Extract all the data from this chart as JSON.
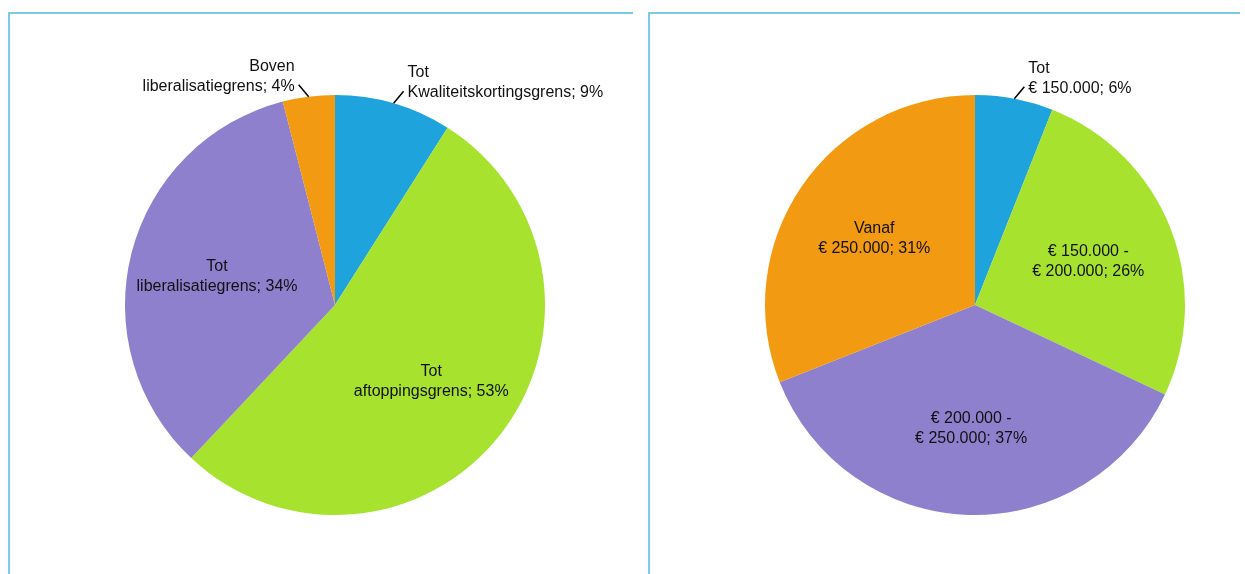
{
  "chart_data": [
    {
      "type": "pie",
      "categories": [
        "Tot Kwaliteitskortingsgrens",
        "Tot aftoppingsgrens",
        "Tot liberalisatiegrens",
        "Boven liberalisatiegrens"
      ],
      "values": [
        9,
        53,
        34,
        4
      ],
      "value_labels": [
        "; 9%",
        "; 53%",
        "; 34%",
        "; 4%"
      ],
      "colors": [
        "#1ea3dc",
        "#a6e22e",
        "#8e80cc",
        "#f29a12"
      ]
    },
    {
      "type": "pie",
      "categories": [
        "Tot € 150.000",
        "€ 150.000 - € 200.000",
        "€ 200.000 - € 250.000",
        "Vanaf € 250.000"
      ],
      "values": [
        6,
        26,
        37,
        31
      ],
      "value_labels": [
        "; 6%",
        "; 26%",
        "; 37%",
        "; 31%"
      ],
      "colors": [
        "#1ea3dc",
        "#a6e22e",
        "#8e80cc",
        "#f29a12"
      ]
    }
  ]
}
